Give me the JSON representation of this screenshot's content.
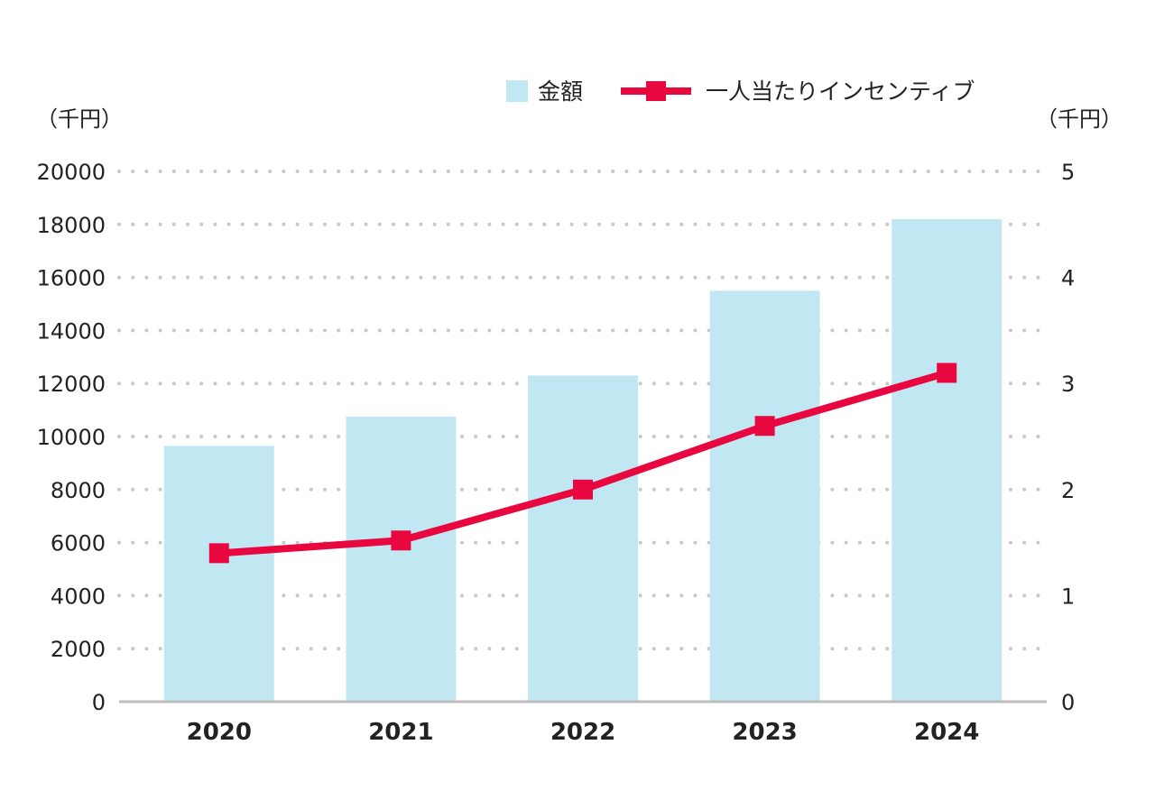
{
  "chart_data": {
    "type": "bar",
    "categories": [
      "2020",
      "2021",
      "2022",
      "2023",
      "2024"
    ],
    "series": [
      {
        "name": "金額",
        "type": "bar",
        "axis": "left",
        "color": "#c1e8f2",
        "values": [
          9650,
          10750,
          12300,
          15500,
          18200
        ]
      },
      {
        "name": "一人当たりインセンティブ",
        "type": "line",
        "axis": "right",
        "color": "#e8073f",
        "values": [
          1.4,
          1.52,
          2.0,
          2.6,
          3.1
        ]
      }
    ],
    "y_left": {
      "unit_label": "（千円）",
      "ylim": [
        0,
        20000
      ],
      "ticks": [
        "0",
        "2000",
        "4000",
        "6000",
        "8000",
        "10000",
        "12000",
        "14000",
        "16000",
        "18000",
        "20000"
      ]
    },
    "y_right": {
      "unit_label": "（千円）",
      "ylim": [
        0,
        5
      ],
      "ticks": [
        "0",
        "1",
        "2",
        "3",
        "4",
        "5"
      ]
    },
    "grid": "dotted-horizontal",
    "legend_position": "top-right"
  }
}
